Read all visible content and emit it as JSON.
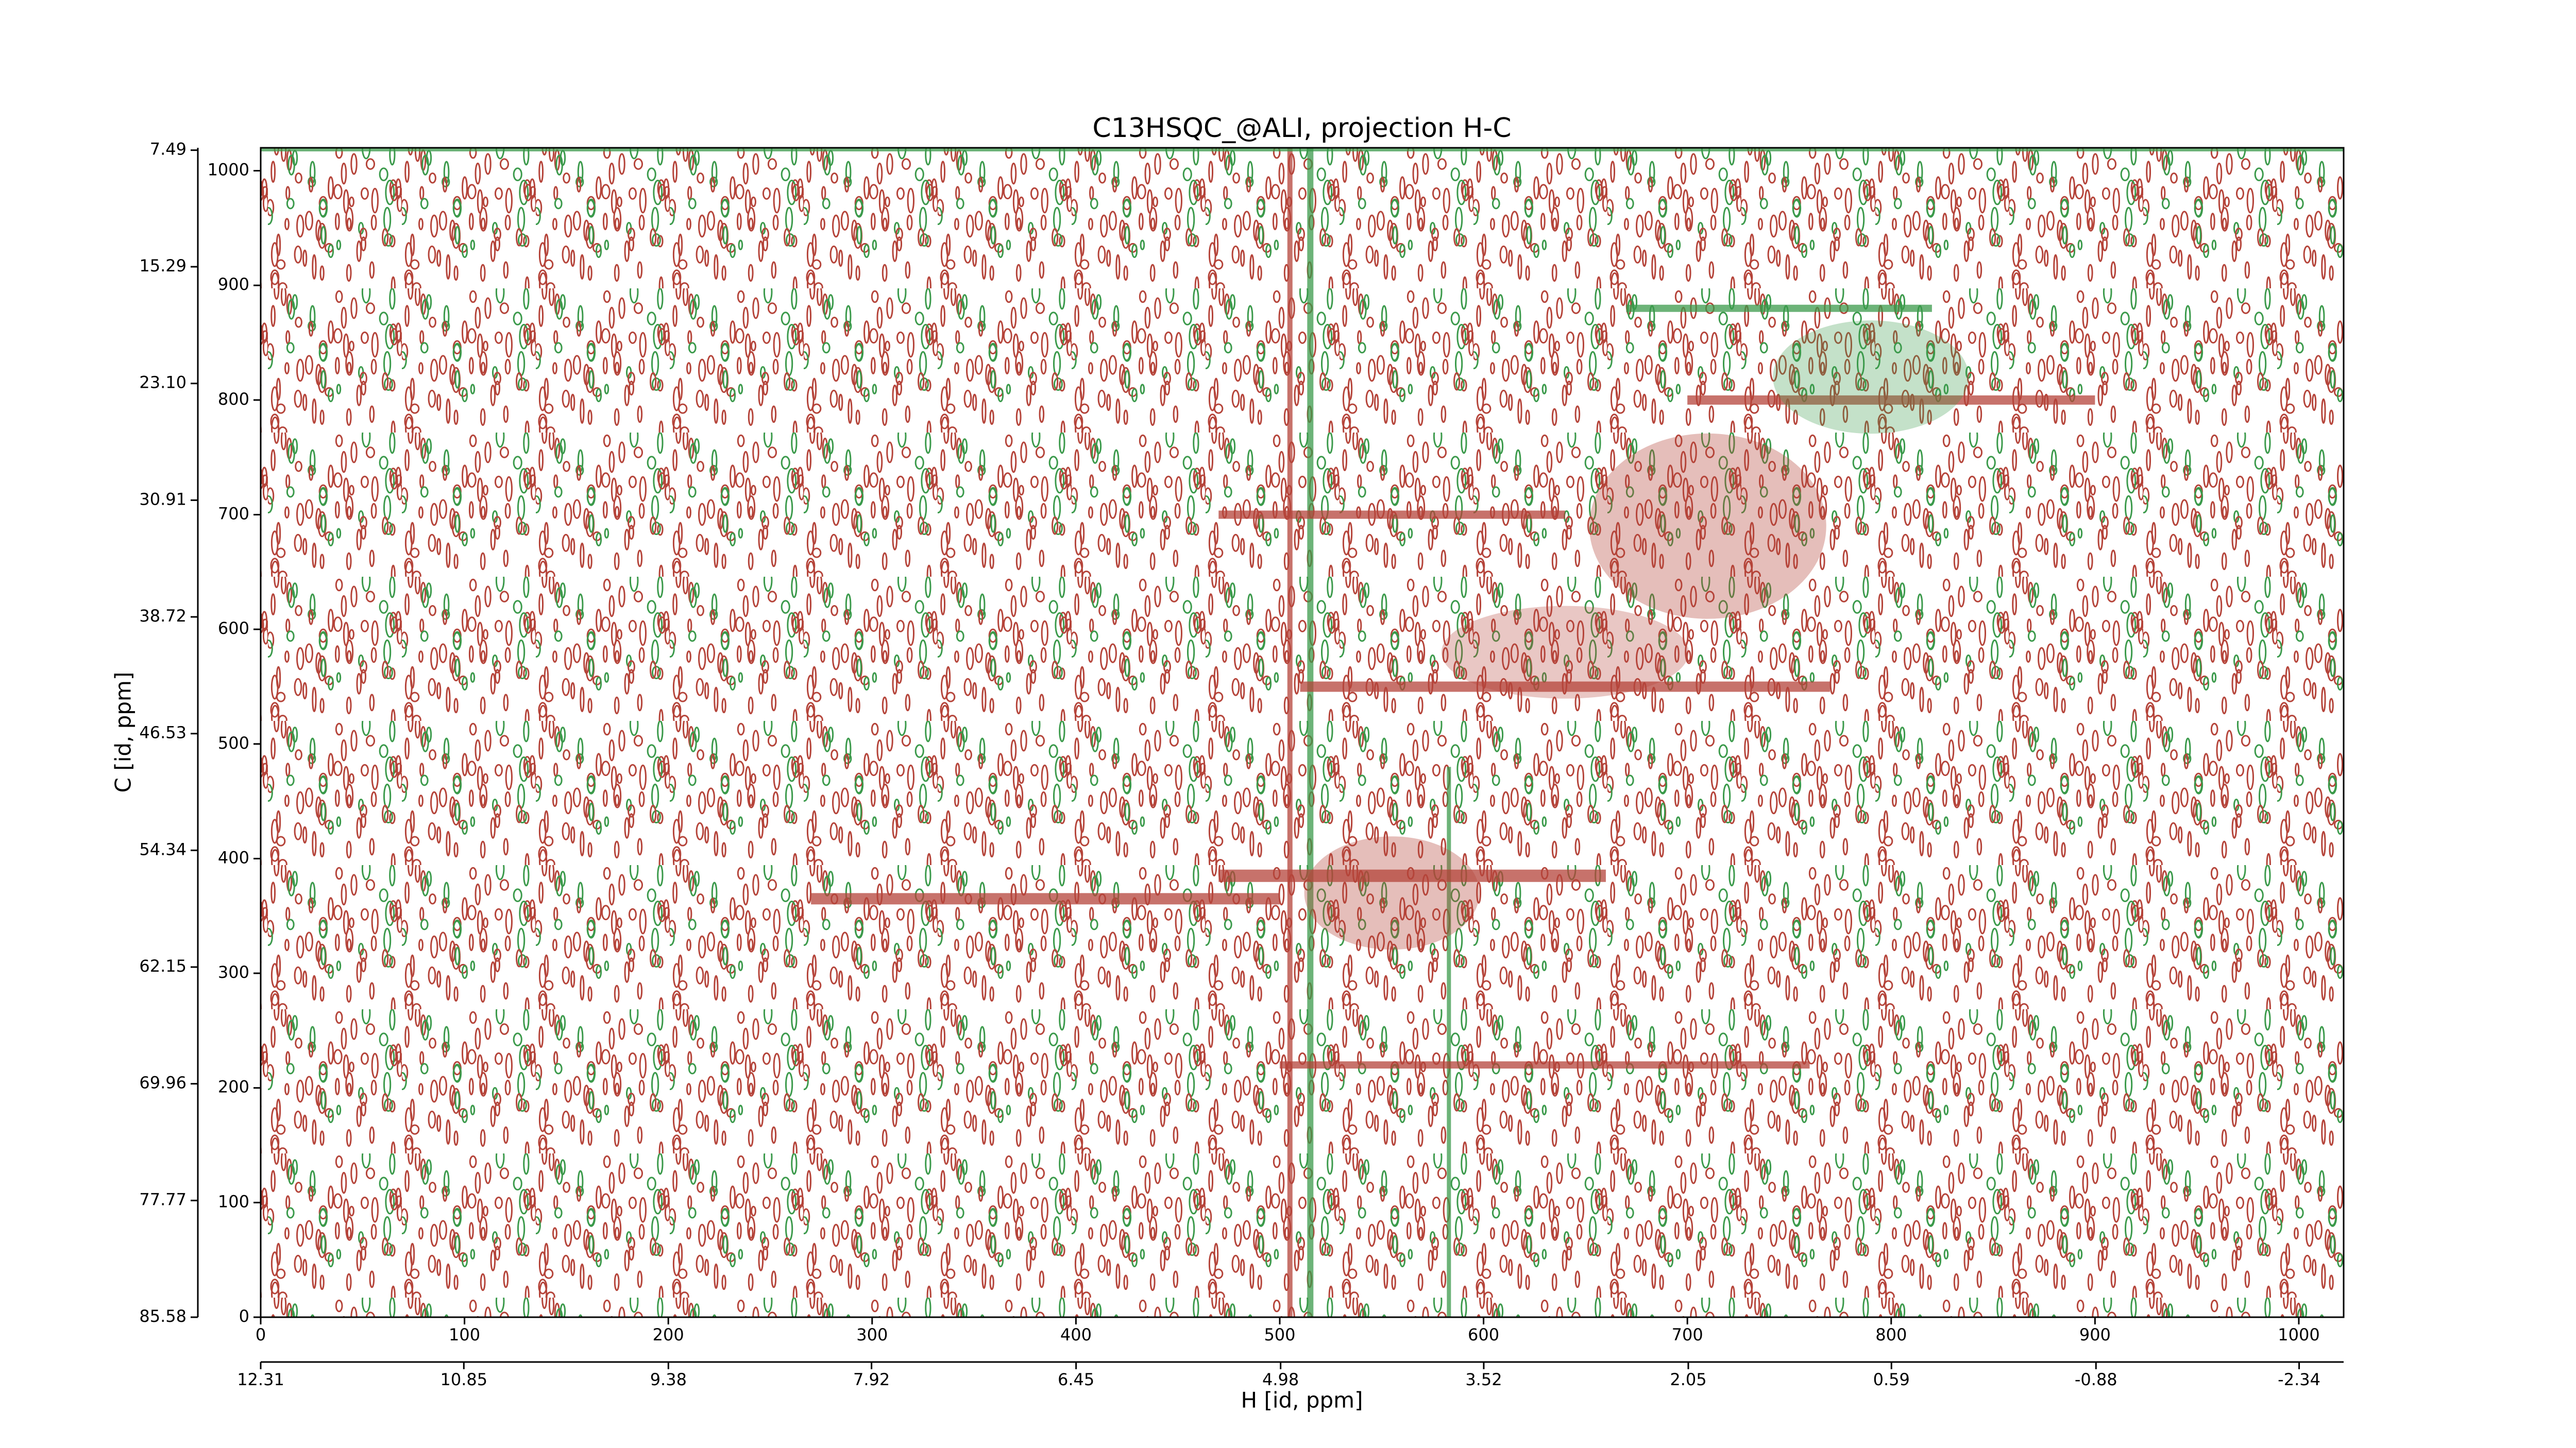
{
  "chart_data": {
    "type": "contour",
    "title": "C13HSQC_@ALI, projection H-C",
    "xlabel": "H [id, ppm]",
    "ylabel": "C [id, ppm]",
    "xlim": [
      0,
      1022
    ],
    "xticks": [
      0,
      100,
      200,
      300,
      400,
      500,
      600,
      700,
      800,
      900,
      1000
    ],
    "ylim": [
      0,
      1020
    ],
    "yticks": [
      0,
      100,
      200,
      300,
      400,
      500,
      600,
      700,
      800,
      900,
      1000
    ],
    "x2lim": [
      12.31,
      -2.66
    ],
    "x2ticks": [
      12.31,
      10.85,
      9.38,
      7.92,
      6.45,
      4.98,
      3.52,
      2.05,
      0.59,
      -0.88,
      -2.34
    ],
    "y2lim": [
      85.58,
      7.33
    ],
    "y2ticks": [
      85.58,
      77.77,
      69.96,
      62.15,
      54.34,
      46.53,
      38.72,
      30.91,
      {
        "value": 23.1,
        "label": "23.10"
      },
      15.29,
      7.49
    ],
    "colors": [
      "#b5443a",
      "#3b9a4b"
    ]
  }
}
